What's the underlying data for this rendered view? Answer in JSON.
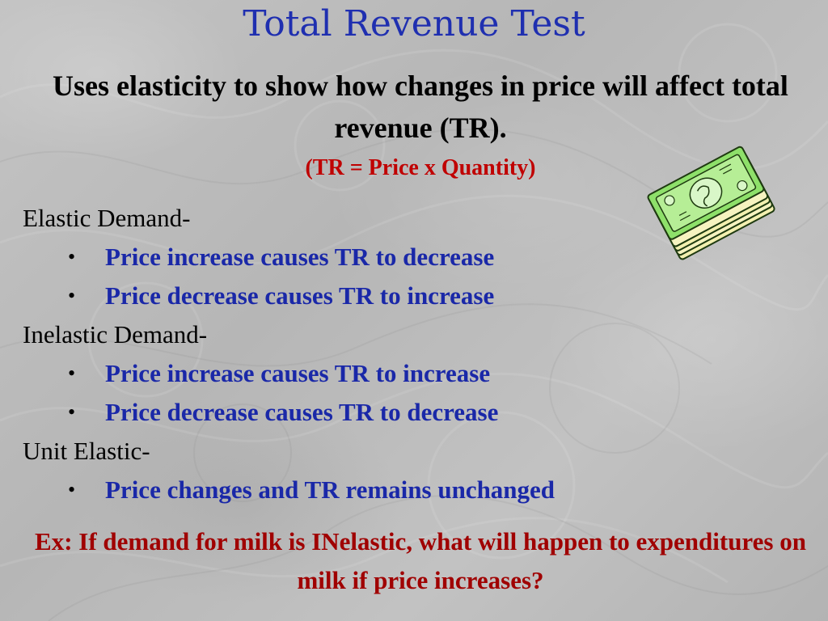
{
  "slide": {
    "title": "Total Revenue Test",
    "subtitle": "Uses elasticity to show how changes in price will affect total revenue (TR).",
    "formula": "(TR = Price x Quantity)",
    "sections": [
      {
        "heading": "Elastic Demand-",
        "bullets": [
          "Price increase causes TR to decrease",
          "Price decrease causes TR to increase"
        ]
      },
      {
        "heading": "Inelastic Demand-",
        "bullets": [
          "Price increase causes TR to increase",
          "Price decrease causes TR to decrease"
        ]
      },
      {
        "heading": "Unit Elastic-",
        "bullets": [
          "Price changes and TR remains unchanged"
        ]
      }
    ],
    "bullet_char": "•",
    "example": "Ex: If demand for milk is INelastic, what will happen to expenditures on milk if price increases?",
    "clipart_icon": "money-stack-icon"
  },
  "colors": {
    "title": "#1f2fb0",
    "bullet_text": "#1a28a8",
    "formula": "#c00000",
    "example": "#a00000",
    "money_green": "#7ed957"
  }
}
